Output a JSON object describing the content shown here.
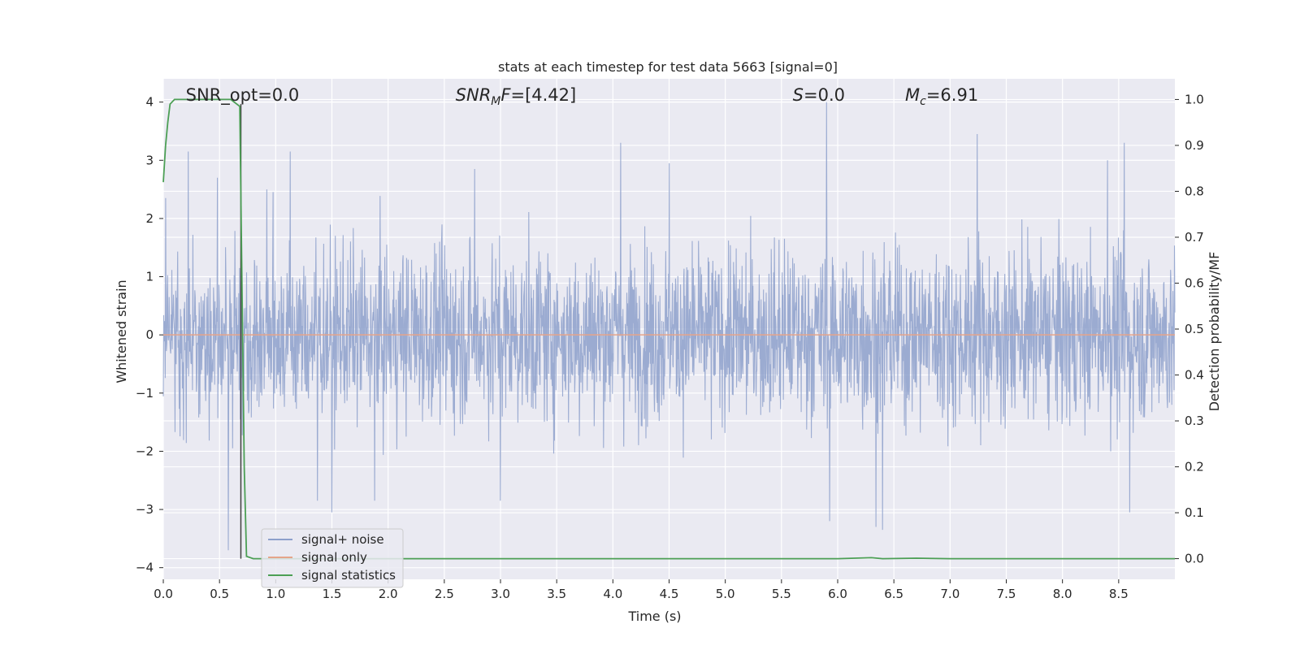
{
  "chart_data": {
    "type": "line",
    "title": "stats at each timestep for test data 5663 [signal=0]",
    "xlabel": "Time (s)",
    "ylabel": "Whitened strain",
    "ylabel_right": "Detection probability/MF",
    "xlim": [
      0,
      9
    ],
    "ylim": [
      -4.2,
      4.4
    ],
    "ylim_right": [
      -0.045,
      1.045
    ],
    "xticks": [
      0.0,
      0.5,
      1.0,
      1.5,
      2.0,
      2.5,
      3.0,
      3.5,
      4.0,
      4.5,
      5.0,
      5.5,
      6.0,
      6.5,
      7.0,
      7.5,
      8.0,
      8.5
    ],
    "xtick_labels": [
      "0.0",
      "0.5",
      "1.0",
      "1.5",
      "2.0",
      "2.5",
      "3.0",
      "3.5",
      "4.0",
      "4.5",
      "5.0",
      "5.5",
      "6.0",
      "6.5",
      "7.0",
      "7.5",
      "8.0",
      "8.5"
    ],
    "yticks": [
      -4,
      -3,
      -2,
      -1,
      0,
      1,
      2,
      3,
      4
    ],
    "ytick_labels": [
      "−4",
      "−3",
      "−2",
      "−1",
      "0",
      "1",
      "2",
      "3",
      "4"
    ],
    "yticks_right": [
      0.0,
      0.1,
      0.2,
      0.3,
      0.4,
      0.5,
      0.6,
      0.7,
      0.8,
      0.9,
      1.0
    ],
    "ytick_labels_right": [
      "0.0",
      "0.1",
      "0.2",
      "0.3",
      "0.4",
      "0.5",
      "0.6",
      "0.7",
      "0.8",
      "0.9",
      "1.0"
    ],
    "grid": true,
    "legend_position": "lower-left",
    "annotations": [
      {
        "name": "snr-opt",
        "text": "SNR_opt=0.0",
        "x": 0.2
      },
      {
        "name": "snr-mf",
        "text": "SNR_MF=[4.42]",
        "x": 2.6
      },
      {
        "name": "s-value",
        "text": "S=0.0",
        "x": 5.6
      },
      {
        "name": "mc-value",
        "text": "M_c=6.91",
        "x": 6.6
      }
    ],
    "series": [
      {
        "name": "signal+ noise",
        "axis": "left",
        "color": "#8da0cb",
        "description_of_values": "whitened strain noise, roughly uniform random in ±2 with spikes",
        "peaks": [
          {
            "x": 0.02,
            "y": 2.35
          },
          {
            "x": 0.22,
            "y": 3.15
          },
          {
            "x": 0.48,
            "y": 2.7
          },
          {
            "x": 0.58,
            "y": -3.7
          },
          {
            "x": 0.92,
            "y": 2.5
          },
          {
            "x": 1.13,
            "y": 3.15
          },
          {
            "x": 1.37,
            "y": -2.85
          },
          {
            "x": 1.5,
            "y": -3.05
          },
          {
            "x": 1.88,
            "y": -2.85
          },
          {
            "x": 2.77,
            "y": 2.85
          },
          {
            "x": 3.0,
            "y": -2.85
          },
          {
            "x": 4.07,
            "y": 3.3
          },
          {
            "x": 4.5,
            "y": 2.95
          },
          {
            "x": 5.9,
            "y": 4.0
          },
          {
            "x": 5.93,
            "y": -3.2
          },
          {
            "x": 6.34,
            "y": -3.3
          },
          {
            "x": 6.4,
            "y": -3.35
          },
          {
            "x": 7.24,
            "y": 3.45
          },
          {
            "x": 8.4,
            "y": 3.0
          },
          {
            "x": 8.55,
            "y": 3.3
          },
          {
            "x": 8.6,
            "y": -3.05
          }
        ]
      },
      {
        "name": "signal only",
        "axis": "left",
        "color": "#e5a48a",
        "x": [
          0,
          9
        ],
        "values": [
          0,
          0
        ]
      },
      {
        "name": "signal statistics",
        "axis": "right",
        "color": "#4c9f55",
        "x": [
          0.0,
          0.02,
          0.04,
          0.06,
          0.1,
          0.2,
          0.4,
          0.6,
          0.68,
          0.69,
          0.72,
          0.74,
          0.8,
          1.0,
          3.0,
          6.0,
          6.3,
          6.4,
          6.7,
          7.0,
          9.0
        ],
        "values": [
          0.82,
          0.9,
          0.95,
          0.99,
          1.0,
          1.0,
          1.0,
          1.0,
          0.985,
          0.8,
          0.2,
          0.005,
          0.0,
          0.0,
          0.0,
          0.0,
          0.002,
          0.0,
          0.001,
          0.0,
          0.0
        ]
      }
    ],
    "vertical_marker": {
      "x": 0.69,
      "y_top": 0.99,
      "y_bottom": 0.0,
      "axis": "right",
      "color": "#404040"
    }
  },
  "legend": {
    "items": [
      {
        "label": "signal+ noise",
        "color": "#8da0cb"
      },
      {
        "label": "signal only",
        "color": "#e5a48a"
      },
      {
        "label": "signal statistics",
        "color": "#4c9f55"
      }
    ]
  }
}
